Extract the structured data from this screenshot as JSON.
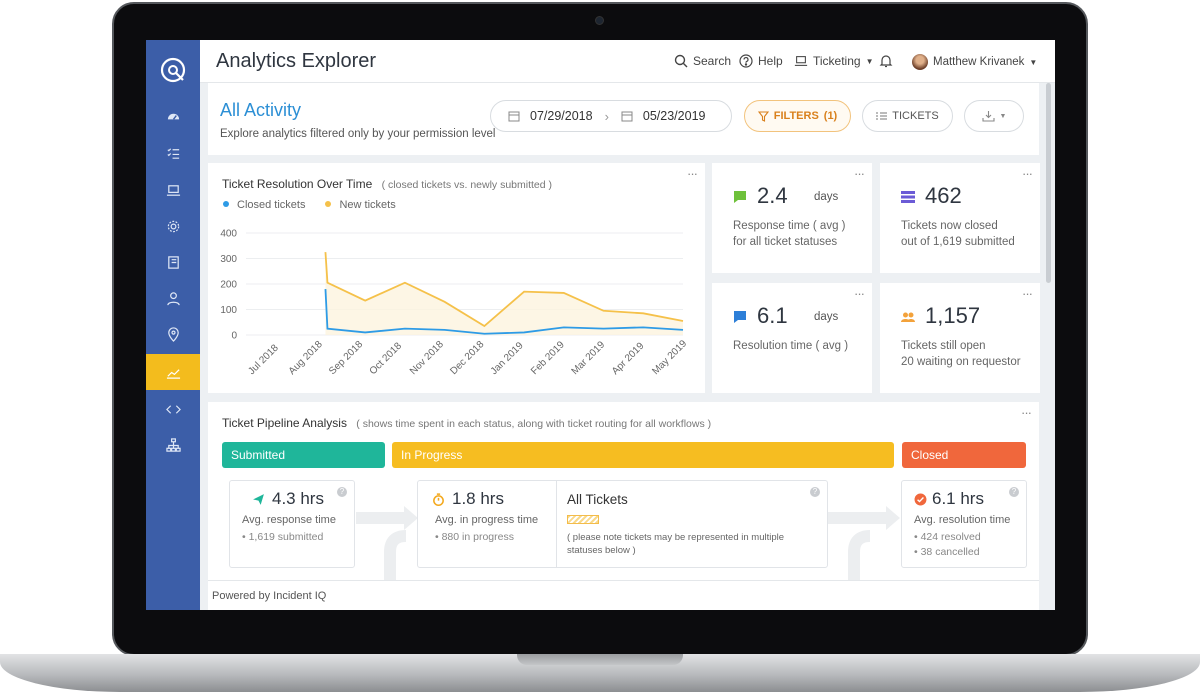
{
  "app": {
    "title": "Analytics Explorer"
  },
  "topbar": {
    "search_label": "Search",
    "help_label": "Help",
    "module_label": "Ticketing",
    "user_name": "Matthew Krivanek"
  },
  "page": {
    "title": "All Activity",
    "subtitle": "Explore analytics filtered only by your permission level",
    "date_start": "07/29/2018",
    "date_end": "05/23/2019",
    "filters_label": "FILTERS",
    "filters_count": "(1)",
    "tickets_label": "TICKETS"
  },
  "sidebar": {
    "items": [
      "dashboard",
      "tickets",
      "assets",
      "settings",
      "knowledge",
      "users",
      "locations",
      "analytics",
      "integrations",
      "organization"
    ],
    "active": "analytics"
  },
  "resolution_card": {
    "title": "Ticket Resolution Over Time",
    "note": "( closed tickets vs. newly submitted )"
  },
  "chart_data": {
    "type": "line",
    "title": "Ticket Resolution Over Time",
    "categories": [
      "Jul 2018",
      "Aug 2018",
      "Sep 2018",
      "Oct 2018",
      "Nov 2018",
      "Dec 2018",
      "Jan 2019",
      "Feb 2019",
      "Mar 2019",
      "Apr 2019",
      "May 2019"
    ],
    "x_positions": [
      0,
      0.55,
      1.4,
      2.4,
      3.4,
      4.4,
      5.4,
      6.4,
      7.4,
      8.4,
      9.4
    ],
    "series": [
      {
        "name": "Closed tickets",
        "color": "#2e9be6",
        "x": [
          2.0,
          2.05,
          3.0,
          4.0,
          5.0,
          6.0,
          7.0,
          8.0,
          9.0,
          10.0,
          11.0
        ],
        "values": [
          180,
          25,
          10,
          25,
          20,
          5,
          10,
          30,
          25,
          30,
          20
        ]
      },
      {
        "name": "New tickets",
        "color": "#f5c14a",
        "x": [
          2.0,
          2.05,
          3.0,
          4.0,
          5.0,
          6.0,
          7.0,
          8.0,
          9.0,
          10.0,
          11.0
        ],
        "values": [
          325,
          205,
          135,
          205,
          130,
          35,
          170,
          165,
          95,
          85,
          55
        ]
      }
    ],
    "ylim": [
      0,
      400
    ],
    "yticks": [
      0,
      100,
      200,
      300,
      400
    ],
    "xtick_labels": [
      "Jul 2018",
      "Aug 2018",
      "Sep 2018",
      "Oct 2018",
      "Nov 2018",
      "Dec 2018",
      "Jan 2019",
      "Feb 2019",
      "Mar 2019",
      "Apr 2019",
      "May 2019"
    ],
    "legend": "top-left",
    "grid": true
  },
  "kpis": [
    {
      "value": "2.4",
      "unit": "days",
      "line1": "Response time ( avg )",
      "line2": "for all ticket statuses",
      "icon": "chat-icon",
      "color": "#6ec13b"
    },
    {
      "value": "462",
      "unit": "",
      "line1": "Tickets now closed",
      "line2": "out of 1,619 submitted",
      "icon": "stack-icon",
      "color": "#6b5bd6"
    },
    {
      "value": "6.1",
      "unit": "days",
      "line1": "Resolution time ( avg )",
      "line2": "",
      "icon": "chat-icon",
      "color": "#2d7fd8"
    },
    {
      "value": "1,157",
      "unit": "",
      "line1": "Tickets still open",
      "line2": "20 waiting on requestor",
      "icon": "users-icon",
      "color": "#f3a23b"
    }
  ],
  "pipeline": {
    "title": "Ticket Pipeline Analysis",
    "note": "( shows time spent in each status, along with ticket routing for all workflows )",
    "stages": [
      {
        "label": "Submitted",
        "color": "#1fb69a"
      },
      {
        "label": "In Progress",
        "color": "#f6bd21"
      },
      {
        "label": "Closed",
        "color": "#f0673c"
      }
    ],
    "submitted": {
      "value": "4.3 hrs",
      "label": "Avg. response time",
      "sub1": "1,619 submitted"
    },
    "in_progress": {
      "value": "1.8 hrs",
      "label": "Avg. in progress time",
      "sub1": "880 in progress"
    },
    "all_tickets": {
      "title": "All Tickets",
      "note": "( please note tickets may be represented in multiple statuses below )"
    },
    "closed": {
      "value": "6.1 hrs",
      "label": "Avg. resolution time",
      "sub1": "424 resolved",
      "sub2": "38 cancelled"
    }
  },
  "footer": {
    "text": "Powered by Incident IQ"
  },
  "colors": {
    "sidebar": "#3c5ea8",
    "accent": "#f3bc1d",
    "link": "#2c8fd5"
  }
}
